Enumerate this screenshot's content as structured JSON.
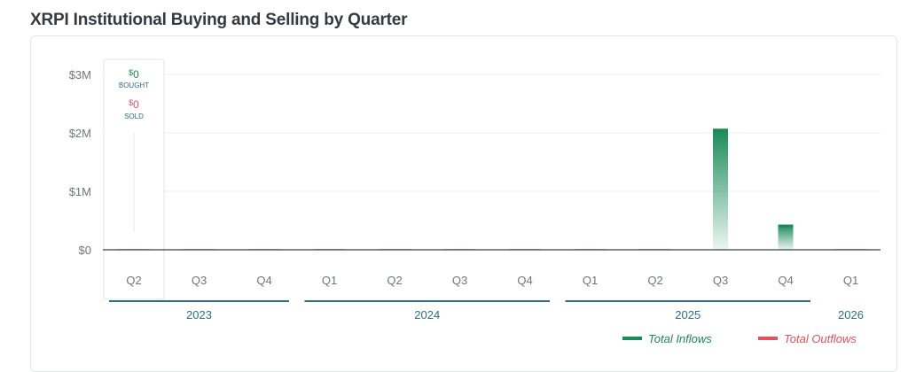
{
  "title": "XRPI Institutional Buying and Selling by Quarter",
  "chart_data": {
    "type": "bar",
    "categories": [
      "Q2",
      "Q3",
      "Q4",
      "Q1",
      "Q2",
      "Q3",
      "Q4",
      "Q1",
      "Q2",
      "Q3",
      "Q4",
      "Q1"
    ],
    "years": [
      {
        "label": "2023",
        "first": 0,
        "last": 2
      },
      {
        "label": "2024",
        "first": 3,
        "last": 6
      },
      {
        "label": "2025",
        "first": 7,
        "last": 10
      },
      {
        "label": "2026",
        "first": 11,
        "last": 11
      }
    ],
    "series": [
      {
        "name": "Total Inflows",
        "values": [
          0,
          0,
          0,
          0,
          0,
          0,
          0,
          0,
          0,
          2070000,
          430000,
          0
        ],
        "color": "#1a8a5a"
      },
      {
        "name": "Total Outflows",
        "values": [
          0,
          0,
          0,
          0,
          0,
          0,
          0,
          0,
          0,
          0,
          0,
          0
        ],
        "color": "#e0525c"
      }
    ],
    "yticks": [
      "$3M",
      "$2M",
      "$1M",
      "$0"
    ],
    "ytick_values": [
      3000000,
      2000000,
      1000000,
      0
    ],
    "ylim": [
      0,
      3000000
    ],
    "grid": true,
    "legend_position": "bottom-right",
    "tooltip": {
      "category_index": 0,
      "bought_currency": "$",
      "bought_value": "0",
      "bought_label": "BOUGHT",
      "sold_currency": "$",
      "sold_value": "0",
      "sold_label": "SOLD"
    }
  }
}
